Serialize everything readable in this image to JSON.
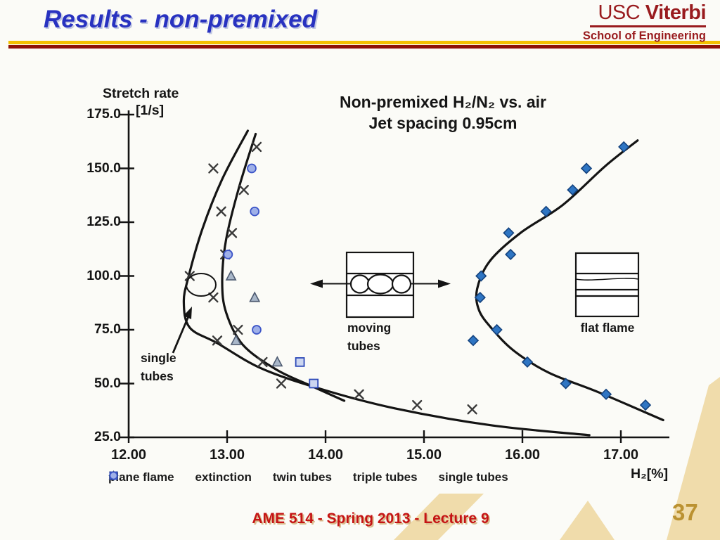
{
  "slide": {
    "title": "Results - non-premixed",
    "footer": "AME 514 - Spring 2013 - Lecture 9",
    "page_number": "37",
    "logo": {
      "usc": "USC",
      "viterbi": "Viterbi",
      "school": "School of Engineering"
    },
    "colors": {
      "title_blue": "#2832c0",
      "rule_yellow": "#f3c100",
      "rule_red": "#8e1206",
      "usc_cardinal": "#991b1e",
      "footer_red": "#c51414",
      "page_gold": "#bb9232",
      "decoration_tan": "#f0dcab"
    }
  },
  "chart_data": {
    "type": "scatter",
    "title_line1": "Non-premixed H₂/N₂ vs. air",
    "title_line2": "Jet spacing 0.95cm",
    "y_axis": {
      "label": "Stretch rate",
      "units": "[1/s]",
      "range": [
        25,
        175
      ],
      "ticks": [
        {
          "v": 175,
          "label": "175.0"
        },
        {
          "v": 150,
          "label": "150.0"
        },
        {
          "v": 125,
          "label": "125.0"
        },
        {
          "v": 100,
          "label": "100.0"
        },
        {
          "v": 75,
          "label": "75.0"
        },
        {
          "v": 50,
          "label": "50.0"
        },
        {
          "v": 25,
          "label": "25.0"
        }
      ]
    },
    "x_axis": {
      "label": "H₂[%]",
      "range": [
        12,
        17.5
      ],
      "ticks": [
        {
          "v": 12,
          "label": "12.00"
        },
        {
          "v": 13,
          "label": "13.00"
        },
        {
          "v": 14,
          "label": "14.00"
        },
        {
          "v": 15,
          "label": "15.00"
        },
        {
          "v": 16,
          "label": "16.00"
        },
        {
          "v": 17,
          "label": "17.00"
        }
      ]
    },
    "grid": false,
    "legend_position": "bottom",
    "legend": [
      {
        "marker": "diamond",
        "label": "plane flame"
      },
      {
        "marker": "x",
        "label": "extinction"
      },
      {
        "marker": "triangle",
        "label": "twin tubes"
      },
      {
        "marker": "square",
        "label": "triple tubes"
      },
      {
        "marker": "circle",
        "label": "single tubes"
      }
    ],
    "series": [
      {
        "name": "plane flame",
        "marker": "diamond",
        "points": [
          [
            17.03,
            160
          ],
          [
            16.65,
            150
          ],
          [
            16.51,
            140
          ],
          [
            16.24,
            130
          ],
          [
            15.86,
            120
          ],
          [
            15.88,
            110
          ],
          [
            15.58,
            100
          ],
          [
            15.57,
            90
          ],
          [
            15.74,
            75
          ],
          [
            15.5,
            70
          ],
          [
            16.05,
            60
          ],
          [
            16.44,
            50
          ],
          [
            16.85,
            45
          ],
          [
            17.25,
            40
          ]
        ]
      },
      {
        "name": "extinction",
        "marker": "x",
        "points": [
          [
            13.3,
            160
          ],
          [
            12.86,
            150
          ],
          [
            13.17,
            140
          ],
          [
            12.94,
            130
          ],
          [
            13.05,
            120
          ],
          [
            12.98,
            110
          ],
          [
            12.62,
            100
          ],
          [
            12.86,
            90
          ],
          [
            13.11,
            75
          ],
          [
            12.9,
            70
          ],
          [
            13.36,
            60
          ],
          [
            13.55,
            50
          ],
          [
            14.34,
            45
          ],
          [
            14.93,
            40
          ],
          [
            15.49,
            38
          ]
        ]
      },
      {
        "name": "twin tubes",
        "marker": "triangle",
        "points": [
          [
            13.04,
            100
          ],
          [
            13.28,
            90
          ],
          [
            13.09,
            70
          ],
          [
            13.51,
            60
          ]
        ]
      },
      {
        "name": "triple tubes",
        "marker": "square",
        "points": [
          [
            13.74,
            60
          ],
          [
            13.88,
            50
          ]
        ]
      },
      {
        "name": "single tubes",
        "marker": "circle",
        "points": [
          [
            13.25,
            150
          ],
          [
            13.28,
            130
          ],
          [
            13.01,
            110
          ],
          [
            13.3,
            75
          ]
        ]
      }
    ],
    "curves": [
      {
        "name": "left-outer",
        "points": [
          [
            13.21,
            167.5
          ],
          [
            12.95,
            145
          ],
          [
            12.75,
            122
          ],
          [
            12.61,
            100
          ],
          [
            12.56,
            88
          ],
          [
            12.62,
            76
          ],
          [
            12.9,
            68.8
          ],
          [
            13.35,
            57
          ],
          [
            13.95,
            47.5
          ],
          [
            14.7,
            38.5
          ],
          [
            15.7,
            30.5
          ],
          [
            16.68,
            26
          ]
        ]
      },
      {
        "name": "left-inner",
        "points": [
          [
            13.29,
            166
          ],
          [
            13.12,
            141
          ],
          [
            12.99,
            117
          ],
          [
            12.95,
            97.5
          ],
          [
            12.99,
            83
          ],
          [
            13.16,
            68
          ],
          [
            13.5,
            56.5
          ],
          [
            13.85,
            49
          ],
          [
            14.19,
            42
          ]
        ]
      },
      {
        "name": "right-plane-flame",
        "points": [
          [
            17.17,
            163
          ],
          [
            16.84,
            151
          ],
          [
            16.41,
            133
          ],
          [
            15.98,
            120
          ],
          [
            15.67,
            107
          ],
          [
            15.54,
            94
          ],
          [
            15.56,
            84
          ],
          [
            15.7,
            75
          ],
          [
            15.92,
            65
          ],
          [
            16.27,
            55
          ],
          [
            16.77,
            46
          ],
          [
            17.43,
            33
          ]
        ]
      }
    ],
    "annotations": {
      "single_tubes": "single tubes",
      "moving_tubes": "moving tubes",
      "flat_flame": "flat flame"
    },
    "colors": {
      "curve": "#141414",
      "diamond_fill": "#2e75c3",
      "diamond_stroke": "#14437f",
      "x_color": "#3a3a3a",
      "triangle_fill": "#a9b7c9",
      "triangle_stroke": "#4d5a70",
      "square_fill": "#ccd6f0",
      "square_stroke": "#2c49b8",
      "circle_fill": "#9fb0e8",
      "circle_stroke": "#3c55c8"
    }
  }
}
